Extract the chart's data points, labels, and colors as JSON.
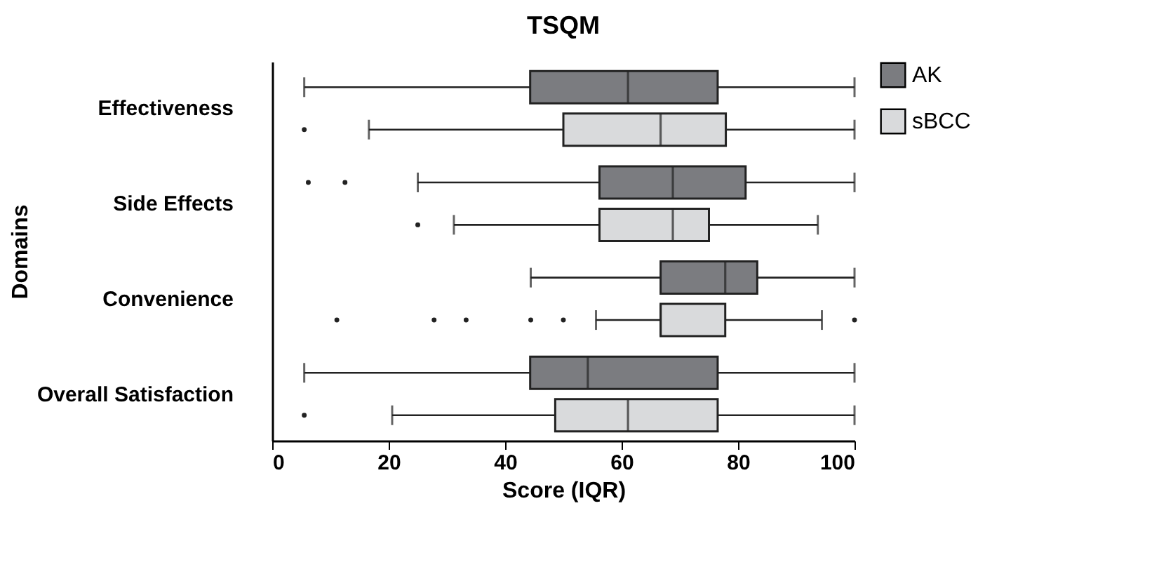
{
  "chart_data": {
    "type": "box",
    "orientation": "horizontal",
    "title": "TSQM",
    "xlabel": "Score (IQR)",
    "ylabel": "Domains",
    "categories": [
      "Effectiveness",
      "Side Effects",
      "Convenience",
      "Overall Satisfaction"
    ],
    "xlim": [
      0,
      100
    ],
    "xticks": [
      0,
      20,
      40,
      60,
      80,
      100
    ],
    "grid": false,
    "legend": "right",
    "series": [
      {
        "name": "AK",
        "color": "#7b7c80",
        "boxes": [
          {
            "low": 5.5,
            "q1": 44.3,
            "median": 61.1,
            "q3": 76.5,
            "high": 100
          },
          {
            "low": 25,
            "q1": 56.2,
            "median": 68.8,
            "q3": 81.3,
            "high": 100,
            "outliers": [
              6.2,
              12.5
            ]
          },
          {
            "low": 44.4,
            "q1": 66.7,
            "median": 77.8,
            "q3": 83.3,
            "high": 100
          },
          {
            "low": 5.5,
            "q1": 44.3,
            "median": 54.2,
            "q3": 76.5,
            "high": 100
          }
        ]
      },
      {
        "name": "sBCC",
        "color": "#d9dadc",
        "boxes": [
          {
            "low": 16.6,
            "q1": 50,
            "median": 66.7,
            "q3": 77.9,
            "high": 100,
            "outliers": [
              5.5
            ]
          },
          {
            "low": 31.2,
            "q1": 56.2,
            "median": 68.8,
            "q3": 75,
            "high": 93.7,
            "outliers": [
              25
            ]
          },
          {
            "low": 55.6,
            "q1": 66.7,
            "median": 66.7,
            "q3": 77.8,
            "high": 94.4,
            "outliers": [
              11.1,
              27.8,
              33.3,
              44.4,
              50,
              100
            ]
          },
          {
            "low": 20.6,
            "q1": 48.6,
            "median": 61.1,
            "q3": 76.5,
            "high": 100,
            "outliers": [
              5.5
            ]
          }
        ]
      }
    ]
  }
}
